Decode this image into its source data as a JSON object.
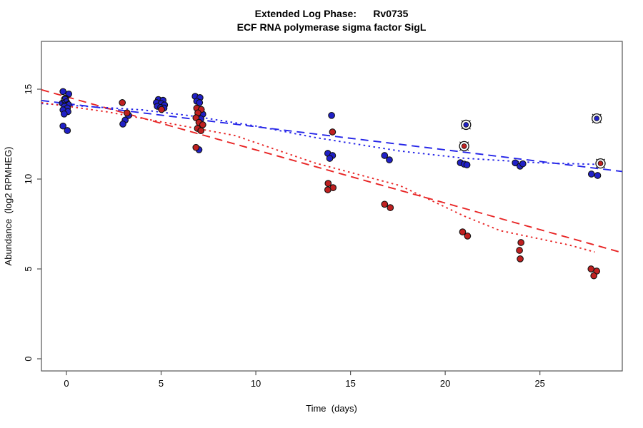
{
  "chart_data": {
    "type": "scatter",
    "title": "Extended Log Phase:      Rv0735",
    "subtitle": "ECF RNA polymerase sigma factor SigL",
    "xlabel": "Time  (days)",
    "ylabel": "Abundance  (log2 RPMHEG)",
    "xlim": [
      -1.32,
      29.35
    ],
    "ylim": [
      -0.675,
      17.66
    ],
    "x_ticks": [
      0,
      5,
      10,
      15,
      20,
      25
    ],
    "y_ticks": [
      0,
      5,
      10,
      15
    ],
    "grid": false,
    "legend": "none",
    "colors": {
      "point_blue": "#2020C8",
      "point_red": "#C02020",
      "line_blue": "#2525E8",
      "line_red": "#E82525",
      "marker_outline": "#111111",
      "frame": "#555555"
    },
    "series": [
      {
        "name": "blue-points",
        "type": "points",
        "color": "#2020C8",
        "points": [
          [
            -0.18,
            14.87
          ],
          [
            0.12,
            14.73
          ],
          [
            -0.05,
            14.5
          ],
          [
            0.0,
            14.3
          ],
          [
            -0.22,
            14.22
          ],
          [
            0.1,
            14.15
          ],
          [
            -0.1,
            14.05
          ],
          [
            0.05,
            13.95
          ],
          [
            -0.18,
            13.85
          ],
          [
            0.08,
            13.75
          ],
          [
            -0.12,
            13.62
          ],
          [
            -0.18,
            12.95
          ],
          [
            0.05,
            12.7
          ],
          [
            3.28,
            13.54
          ],
          [
            3.1,
            13.28
          ],
          [
            2.98,
            13.06
          ],
          [
            4.85,
            14.42
          ],
          [
            5.1,
            14.38
          ],
          [
            4.75,
            14.25
          ],
          [
            5.0,
            14.2
          ],
          [
            5.18,
            14.12
          ],
          [
            4.8,
            14.05
          ],
          [
            4.98,
            13.98
          ],
          [
            5.15,
            13.95
          ],
          [
            6.8,
            14.6
          ],
          [
            7.05,
            14.53
          ],
          [
            6.88,
            14.33
          ],
          [
            7.03,
            14.25
          ],
          [
            7.2,
            13.61
          ],
          [
            7.1,
            13.35
          ],
          [
            7.0,
            11.63
          ],
          [
            14.0,
            13.54
          ],
          [
            13.8,
            11.43
          ],
          [
            14.05,
            11.31
          ],
          [
            13.9,
            11.15
          ],
          [
            16.8,
            11.31
          ],
          [
            17.05,
            11.07
          ],
          [
            20.8,
            10.91
          ],
          [
            21.0,
            10.83
          ],
          [
            21.15,
            10.79
          ],
          [
            23.7,
            10.9
          ],
          [
            23.95,
            10.72
          ],
          [
            24.1,
            10.85
          ],
          [
            27.72,
            10.28
          ],
          [
            28.05,
            10.2
          ]
        ]
      },
      {
        "name": "red-points",
        "type": "points",
        "color": "#C02020",
        "points": [
          [
            2.95,
            14.25
          ],
          [
            3.2,
            13.68
          ],
          [
            5.02,
            13.87
          ],
          [
            6.88,
            13.94
          ],
          [
            7.12,
            13.87
          ],
          [
            6.94,
            13.68
          ],
          [
            6.84,
            13.41
          ],
          [
            7.0,
            13.15
          ],
          [
            7.2,
            13.02
          ],
          [
            6.92,
            12.82
          ],
          [
            7.1,
            12.69
          ],
          [
            6.84,
            11.76
          ],
          [
            14.05,
            12.62
          ],
          [
            13.82,
            9.76
          ],
          [
            14.08,
            9.52
          ],
          [
            13.8,
            9.4
          ],
          [
            16.8,
            8.6
          ],
          [
            17.1,
            8.41
          ],
          [
            20.92,
            7.06
          ],
          [
            21.18,
            6.83
          ],
          [
            24.0,
            6.47
          ],
          [
            23.92,
            6.03
          ],
          [
            23.96,
            5.56
          ],
          [
            27.7,
            5.0
          ],
          [
            28.0,
            4.88
          ],
          [
            27.85,
            4.62
          ]
        ]
      },
      {
        "name": "circled-blue-points",
        "type": "circled_points",
        "color": "#2020C8",
        "points": [
          [
            21.1,
            13.02
          ],
          [
            28.0,
            13.37
          ]
        ]
      },
      {
        "name": "circled-red-points",
        "type": "circled_points",
        "color": "#C02020",
        "points": [
          [
            21.0,
            11.83
          ],
          [
            28.2,
            10.87
          ]
        ]
      },
      {
        "name": "open-circle-point",
        "type": "open_points",
        "color": "#111111",
        "points": [
          [
            -0.08,
            14.42
          ]
        ]
      },
      {
        "name": "blue-dashed-fit",
        "type": "line",
        "style": "dashed",
        "color": "#2525E8",
        "points": [
          [
            -1.32,
            14.37
          ],
          [
            29.35,
            10.42
          ]
        ]
      },
      {
        "name": "red-dashed-fit",
        "type": "line",
        "style": "dashed",
        "color": "#E82525",
        "points": [
          [
            -1.32,
            14.97
          ],
          [
            29.35,
            5.9
          ]
        ]
      },
      {
        "name": "blue-dotted-fit",
        "type": "line",
        "style": "dotted",
        "color": "#2525E8",
        "points": [
          [
            -1.32,
            14.2
          ],
          [
            4,
            13.85
          ],
          [
            6.7,
            13.5
          ],
          [
            10,
            12.95
          ],
          [
            13.1,
            12.32
          ],
          [
            17.6,
            11.56
          ],
          [
            21,
            11.16
          ],
          [
            25,
            10.9
          ],
          [
            28,
            10.82
          ]
        ]
      },
      {
        "name": "red-dotted-fit",
        "type": "line",
        "style": "dotted",
        "color": "#E82525",
        "points": [
          [
            -1.32,
            14.25
          ],
          [
            2.15,
            13.74
          ],
          [
            8.9,
            12.42
          ],
          [
            13.1,
            10.9
          ],
          [
            17.6,
            9.64
          ],
          [
            21,
            7.94
          ],
          [
            22.9,
            7.13
          ],
          [
            26.5,
            6.34
          ],
          [
            27.9,
            5.94
          ]
        ]
      }
    ]
  }
}
